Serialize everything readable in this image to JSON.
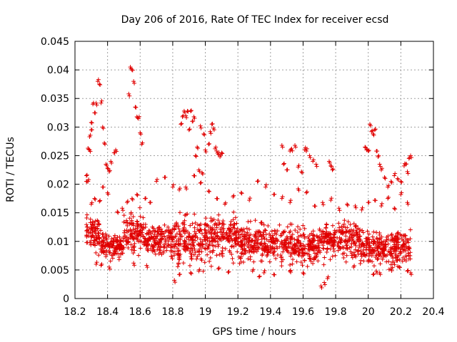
{
  "chart_data": {
    "type": "scatter",
    "title": "Day 206 of 2016, Rate Of TEC Index for receiver ecsd",
    "xlabel": "GPS time / hours",
    "ylabel": "ROTI / TECUs",
    "xlim": [
      18.2,
      20.4
    ],
    "ylim": [
      0,
      0.045
    ],
    "x_ticks": [
      "18.2",
      "18.4",
      "18.6",
      "18.8",
      "19",
      "19.2",
      "19.4",
      "19.6",
      "19.8",
      "20",
      "20.2",
      "20.4"
    ],
    "y_ticks": [
      "0",
      "0.005",
      "0.01",
      "0.015",
      "0.02",
      "0.025",
      "0.03",
      "0.035",
      "0.04",
      "0.045"
    ],
    "grid": true,
    "marker": "plus",
    "colors": {
      "points": "#e00000",
      "grid": "#a0a0a0",
      "axis": "#000000"
    },
    "bands": [
      {
        "x": [
          18.27,
          18.36
        ],
        "y": [
          0.007,
          0.0155
        ]
      },
      {
        "x": [
          18.36,
          18.5
        ],
        "y": [
          0.0065,
          0.012
        ]
      },
      {
        "x": [
          18.5,
          18.62
        ],
        "y": [
          0.007,
          0.0165
        ]
      },
      {
        "x": [
          18.62,
          18.8
        ],
        "y": [
          0.0065,
          0.014
        ]
      },
      {
        "x": [
          18.8,
          19.0
        ],
        "y": [
          0.0045,
          0.0155
        ]
      },
      {
        "x": [
          19.0,
          19.2
        ],
        "y": [
          0.0055,
          0.016
        ]
      },
      {
        "x": [
          19.2,
          19.45
        ],
        "y": [
          0.005,
          0.014
        ]
      },
      {
        "x": [
          19.45,
          19.7
        ],
        "y": [
          0.005,
          0.0135
        ]
      },
      {
        "x": [
          19.7,
          19.95
        ],
        "y": [
          0.006,
          0.0145
        ]
      },
      {
        "x": [
          19.95,
          20.1
        ],
        "y": [
          0.005,
          0.0125
        ]
      },
      {
        "x": [
          20.1,
          20.26
        ],
        "y": [
          0.005,
          0.013
        ]
      }
    ],
    "series": [
      {
        "x": [
          18.27,
          18.27,
          18.28,
          18.28,
          18.29,
          18.29,
          18.3,
          18.3,
          18.31,
          18.32,
          18.33,
          18.34,
          18.35,
          18.36,
          18.37,
          18.38,
          18.39,
          18.4,
          18.41,
          18.42,
          18.44,
          18.45
        ],
        "y": [
          0.0205,
          0.0215,
          0.0263,
          0.0205,
          0.0283,
          0.026,
          0.0308,
          0.0295,
          0.034,
          0.0325,
          0.0342,
          0.038,
          0.0375,
          0.0342,
          0.03,
          0.0272,
          0.0235,
          0.0228,
          0.0222,
          0.024,
          0.0255,
          0.026
        ]
      },
      {
        "x": [
          18.53,
          18.54,
          18.55,
          18.56,
          18.57,
          18.58,
          18.59,
          18.6,
          18.61
        ],
        "y": [
          0.0358,
          0.0405,
          0.04,
          0.038,
          0.0335,
          0.0318,
          0.0315,
          0.029,
          0.027
        ]
      },
      {
        "x": [
          18.85,
          18.86,
          18.87,
          18.88,
          18.89,
          18.9,
          18.91,
          18.92,
          18.93,
          18.94,
          18.95,
          18.96,
          18.97,
          18.98,
          18.99,
          19.0
        ],
        "y": [
          0.0305,
          0.0318,
          0.0328,
          0.032,
          0.0328,
          0.0295,
          0.0328,
          0.031,
          0.0318,
          0.025,
          0.0265,
          0.0225,
          0.0302,
          0.022,
          0.0288,
          0.026
        ]
      },
      {
        "x": [
          19.02,
          19.03,
          19.04,
          19.05,
          19.06,
          19.07,
          19.08,
          19.09,
          19.1
        ],
        "y": [
          0.027,
          0.0292,
          0.0305,
          0.0298,
          0.0262,
          0.0258,
          0.0252,
          0.0248,
          0.0255
        ]
      },
      {
        "x": [
          19.47,
          19.48,
          19.5,
          19.52,
          19.53,
          19.55,
          19.57,
          19.59,
          19.61,
          19.62,
          19.64,
          19.66,
          19.68
        ],
        "y": [
          0.0268,
          0.0235,
          0.0225,
          0.0258,
          0.0262,
          0.0268,
          0.023,
          0.0222,
          0.026,
          0.0258,
          0.025,
          0.024,
          0.0235
        ]
      },
      {
        "x": [
          19.76,
          19.77,
          19.78
        ],
        "y": [
          0.024,
          0.0232,
          0.0225
        ]
      },
      {
        "x": [
          19.98,
          19.99,
          20.0,
          20.01,
          20.02,
          20.03,
          20.04,
          20.05,
          20.06,
          20.07,
          20.08,
          20.1,
          20.12,
          20.14,
          20.16,
          20.18,
          20.2,
          20.22,
          20.23,
          20.24,
          20.25,
          20.26
        ],
        "y": [
          0.0265,
          0.026,
          0.0258,
          0.0305,
          0.0292,
          0.0288,
          0.0295,
          0.0258,
          0.0248,
          0.0235,
          0.0225,
          0.0212,
          0.0195,
          0.0205,
          0.0215,
          0.021,
          0.0205,
          0.0232,
          0.0235,
          0.0222,
          0.0245,
          0.025
        ]
      },
      {
        "x": [
          18.3,
          18.32,
          18.35,
          18.37,
          18.4,
          18.46,
          18.49,
          18.52,
          18.55,
          18.58,
          18.63,
          18.66,
          18.7,
          18.75,
          18.8,
          18.84,
          18.88,
          18.93,
          18.97,
          19.02,
          19.07,
          19.12,
          19.17,
          19.22,
          19.27,
          19.32,
          19.37,
          19.42,
          19.47,
          19.52,
          19.57,
          19.62,
          19.67,
          19.72,
          19.77,
          19.82,
          19.87,
          19.92,
          19.96,
          20.0,
          20.04,
          20.08,
          20.12,
          20.16,
          20.2,
          20.24
        ],
        "y": [
          0.0165,
          0.0175,
          0.017,
          0.0195,
          0.0185,
          0.0152,
          0.0158,
          0.0168,
          0.0175,
          0.0182,
          0.0175,
          0.0168,
          0.0205,
          0.0212,
          0.0195,
          0.019,
          0.0195,
          0.0215,
          0.0202,
          0.0188,
          0.0175,
          0.0165,
          0.0178,
          0.0185,
          0.0172,
          0.0205,
          0.0195,
          0.0182,
          0.0175,
          0.0168,
          0.0192,
          0.0185,
          0.0162,
          0.0168,
          0.0172,
          0.0158,
          0.0165,
          0.0162,
          0.0155,
          0.0168,
          0.0172,
          0.0162,
          0.0175,
          0.0158,
          0.0182,
          0.0168
        ]
      },
      {
        "x": [
          18.33,
          18.36,
          18.41,
          18.56,
          18.64,
          18.81,
          18.84,
          18.91,
          18.96,
          19.08,
          19.14,
          19.29,
          19.33,
          19.36,
          19.42,
          19.52,
          19.6,
          19.71,
          19.73,
          19.75,
          19.91,
          20.03,
          20.05,
          20.07,
          20.14,
          20.19,
          20.24,
          20.26
        ],
        "y": [
          0.006,
          0.0058,
          0.0055,
          0.0062,
          0.0058,
          0.0032,
          0.0042,
          0.0045,
          0.0048,
          0.0052,
          0.0046,
          0.0048,
          0.0038,
          0.0045,
          0.0042,
          0.0048,
          0.0045,
          0.0022,
          0.0028,
          0.0035,
          0.0055,
          0.0042,
          0.0048,
          0.0045,
          0.0052,
          0.0055,
          0.0048,
          0.0045
        ]
      }
    ]
  }
}
